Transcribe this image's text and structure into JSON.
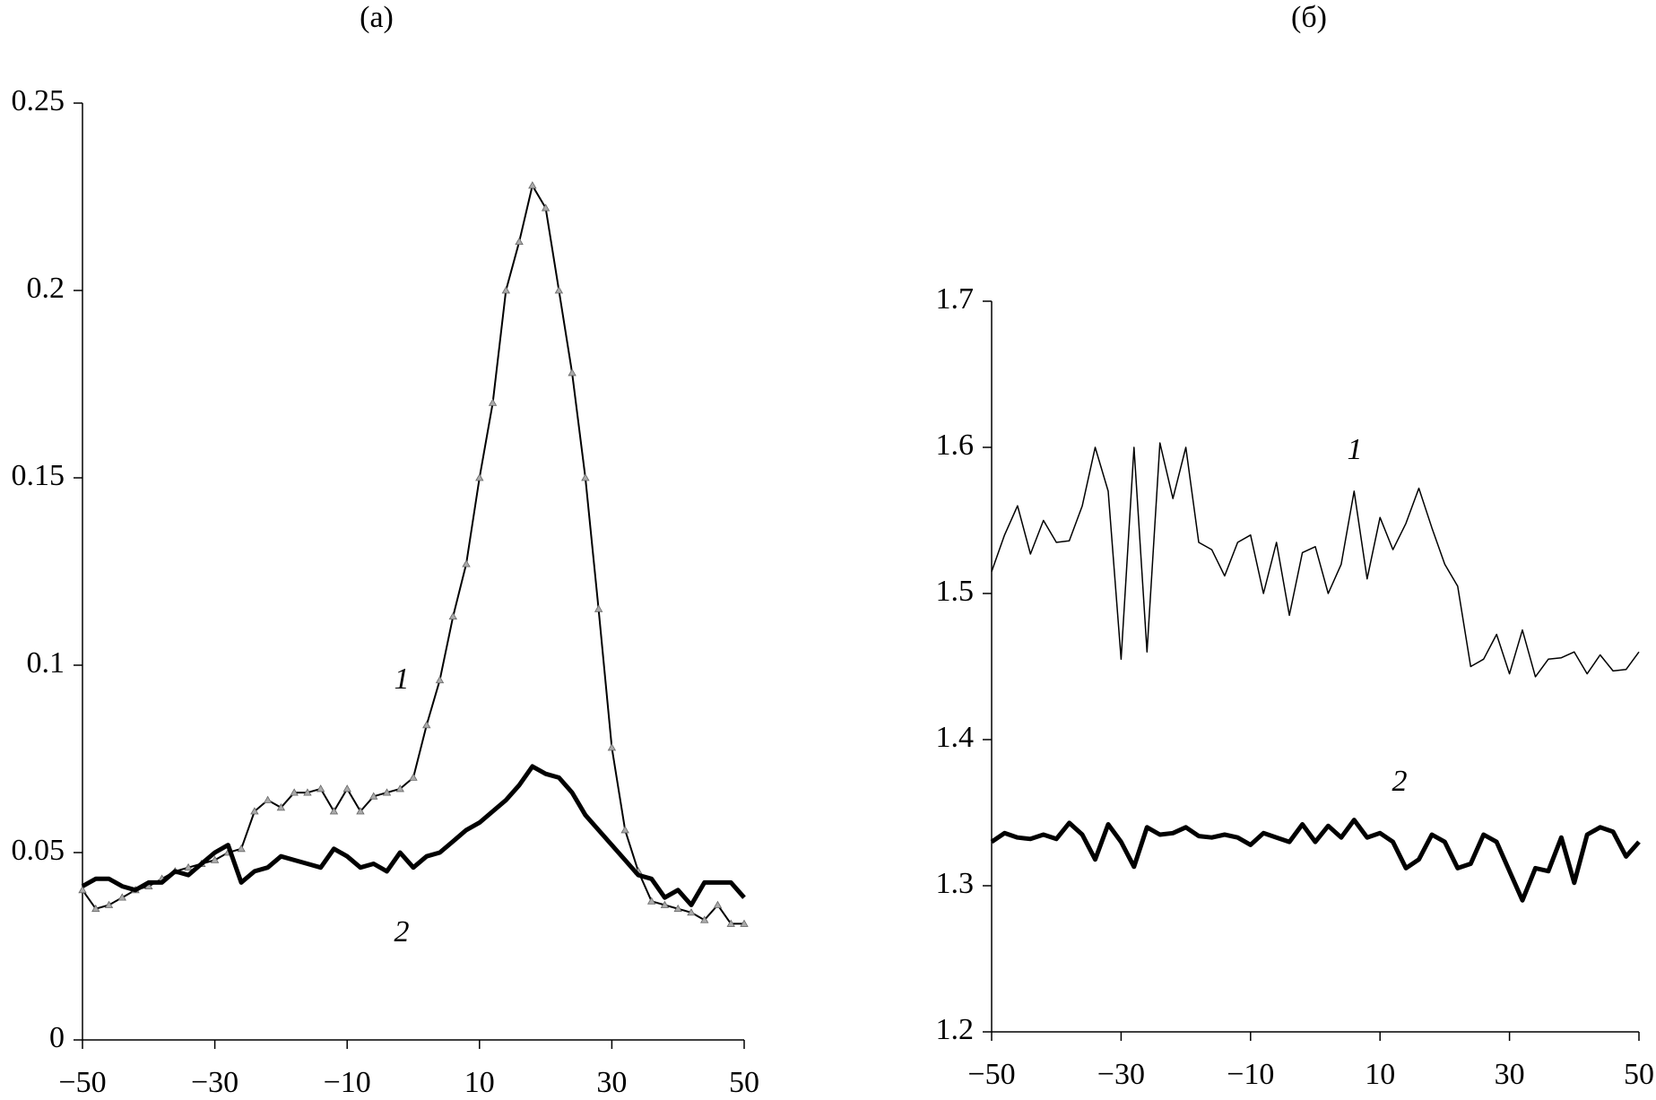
{
  "chart_data": [
    {
      "type": "line",
      "title": "(a)",
      "x": [
        -50,
        -48,
        -46,
        -44,
        -42,
        -40,
        -38,
        -36,
        -34,
        -32,
        -30,
        -28,
        -26,
        -24,
        -22,
        -20,
        -18,
        -16,
        -14,
        -12,
        -10,
        -8,
        -6,
        -4,
        -2,
        0,
        2,
        4,
        6,
        8,
        10,
        12,
        14,
        16,
        18,
        20,
        22,
        24,
        26,
        28,
        30,
        32,
        34,
        36,
        38,
        40,
        42,
        44,
        46,
        48,
        50
      ],
      "xlim": [
        -50,
        50
      ],
      "xticks": [
        -50,
        -30,
        -10,
        10,
        30,
        50
      ],
      "ylim": [
        0,
        0.25
      ],
      "yticks": [
        0,
        0.05,
        0.1,
        0.15,
        0.2,
        0.25
      ],
      "series": [
        {
          "name": "1",
          "color": "#000",
          "line_width": 2,
          "marker": "triangle",
          "values": [
            0.04,
            0.035,
            0.036,
            0.038,
            0.04,
            0.041,
            0.043,
            0.045,
            0.046,
            0.047,
            0.048,
            0.05,
            0.051,
            0.061,
            0.064,
            0.062,
            0.066,
            0.066,
            0.067,
            0.061,
            0.067,
            0.061,
            0.065,
            0.066,
            0.067,
            0.07,
            0.084,
            0.096,
            0.113,
            0.127,
            0.15,
            0.17,
            0.2,
            0.213,
            0.228,
            0.222,
            0.2,
            0.178,
            0.15,
            0.115,
            0.078,
            0.056,
            0.045,
            0.037,
            0.036,
            0.035,
            0.034,
            0.032,
            0.036,
            0.031,
            0.031
          ]
        },
        {
          "name": "2",
          "color": "#000",
          "line_width": 5,
          "values": [
            0.041,
            0.043,
            0.043,
            0.041,
            0.04,
            0.042,
            0.042,
            0.045,
            0.044,
            0.047,
            0.05,
            0.052,
            0.042,
            0.045,
            0.046,
            0.049,
            0.048,
            0.047,
            0.046,
            0.051,
            0.049,
            0.046,
            0.047,
            0.045,
            0.05,
            0.046,
            0.049,
            0.05,
            0.053,
            0.056,
            0.058,
            0.061,
            0.064,
            0.068,
            0.073,
            0.071,
            0.07,
            0.066,
            0.06,
            0.056,
            0.052,
            0.048,
            0.044,
            0.043,
            0.038,
            0.04,
            0.036,
            0.042,
            0.042,
            0.042,
            0.038
          ]
        }
      ]
    },
    {
      "type": "line",
      "title": "(б)",
      "x": [
        -50,
        -48,
        -46,
        -44,
        -42,
        -40,
        -38,
        -36,
        -34,
        -32,
        -30,
        -28,
        -26,
        -24,
        -22,
        -20,
        -18,
        -16,
        -14,
        -12,
        -10,
        -8,
        -6,
        -4,
        -2,
        0,
        2,
        4,
        6,
        8,
        10,
        12,
        14,
        16,
        18,
        20,
        22,
        24,
        26,
        28,
        30,
        32,
        34,
        36,
        38,
        40,
        42,
        44,
        46,
        48,
        50
      ],
      "xlim": [
        -50,
        50
      ],
      "xticks": [
        -50,
        -30,
        -10,
        10,
        30,
        50
      ],
      "ylim": [
        1.2,
        1.7
      ],
      "yticks": [
        1.2,
        1.3,
        1.4,
        1.5,
        1.6,
        1.7
      ],
      "series": [
        {
          "name": "1",
          "color": "#000",
          "line_width": 1.5,
          "values": [
            1.515,
            1.54,
            1.56,
            1.527,
            1.55,
            1.535,
            1.536,
            1.56,
            1.6,
            1.57,
            1.455,
            1.6,
            1.46,
            1.603,
            1.565,
            1.6,
            1.535,
            1.53,
            1.512,
            1.535,
            1.54,
            1.5,
            1.535,
            1.485,
            1.528,
            1.532,
            1.5,
            1.52,
            1.57,
            1.51,
            1.552,
            1.53,
            1.548,
            1.572,
            1.545,
            1.52,
            1.505,
            1.45,
            1.455,
            1.472,
            1.445,
            1.475,
            1.443,
            1.455,
            1.456,
            1.46,
            1.445,
            1.458,
            1.447,
            1.448,
            1.46
          ]
        },
        {
          "name": "2",
          "color": "#000",
          "line_width": 5,
          "values": [
            1.33,
            1.336,
            1.333,
            1.332,
            1.335,
            1.332,
            1.343,
            1.335,
            1.318,
            1.342,
            1.33,
            1.313,
            1.34,
            1.335,
            1.336,
            1.34,
            1.334,
            1.333,
            1.335,
            1.333,
            1.328,
            1.336,
            1.333,
            1.33,
            1.342,
            1.33,
            1.341,
            1.333,
            1.345,
            1.333,
            1.336,
            1.33,
            1.312,
            1.318,
            1.335,
            1.33,
            1.312,
            1.315,
            1.335,
            1.33,
            1.31,
            1.29,
            1.312,
            1.31,
            1.333,
            1.302,
            1.335,
            1.34,
            1.337,
            1.32,
            1.33
          ]
        }
      ]
    }
  ]
}
